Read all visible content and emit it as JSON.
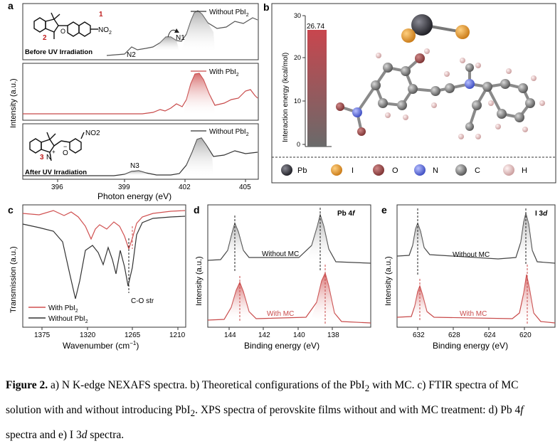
{
  "panels": {
    "a": {
      "letter": "a",
      "xlabel": "Photon energy (eV)",
      "ylabel": "Intensity (a.u.)",
      "xticks": [
        "396",
        "399",
        "402",
        "405"
      ],
      "sub1": {
        "legend": "Without PbI",
        "legend_sub": "2",
        "title": "Before UV Irradiation",
        "peaks": [
          "N1",
          "N2"
        ],
        "struct_labels": [
          "1",
          "2",
          "NO",
          "2",
          "O"
        ]
      },
      "sub2": {
        "legend": "With PbI",
        "legend_sub": "2"
      },
      "sub3": {
        "legend": "Without PbI",
        "legend_sub": "2",
        "title": "After UV Irradiation",
        "peaks": [
          "N3"
        ],
        "struct_labels": [
          "NO2",
          "3",
          "N",
          "+",
          "O",
          "−"
        ]
      }
    },
    "b": {
      "letter": "b",
      "ylabel": "Interaction energy (kcal/mol)",
      "yticks": [
        "0",
        "10",
        "20",
        "30"
      ],
      "value_label": "26.74",
      "legend": [
        {
          "label": "Pb",
          "color": "#3a3a44"
        },
        {
          "label": "I",
          "color": "#e79a2a"
        },
        {
          "label": "O",
          "color": "#9a4a4a"
        },
        {
          "label": "N",
          "color": "#5a6ad8"
        },
        {
          "label": "C",
          "color": "#6f6f6f"
        },
        {
          "label": "H",
          "color": "#e8c4c4"
        }
      ]
    },
    "c": {
      "letter": "c",
      "xlabel": "Wavenumber (cm",
      "xlabel_sup": "−1",
      "xlabel_end": ")",
      "ylabel": "Transmission (a.u.)",
      "xticks": [
        "1375",
        "1320",
        "1265",
        "1210"
      ],
      "annotation": "C-O str",
      "legend": [
        {
          "label": "With PbI",
          "sub": "2",
          "color": "#d05050"
        },
        {
          "label": "Without PbI",
          "sub": "2",
          "color": "#333333"
        }
      ]
    },
    "d": {
      "letter": "d",
      "title": "Pb 4",
      "title_it": "f",
      "xlabel": "Binding energy (eV)",
      "ylabel": "Intensity (a.u.)",
      "xticks": [
        "144",
        "142",
        "140",
        "138"
      ],
      "labels": [
        "Without MC",
        "With MC"
      ]
    },
    "e": {
      "letter": "e",
      "title": "I 3",
      "title_it": "d",
      "xlabel": "Binding energy (eV)",
      "ylabel": "Intensity (a.u.)",
      "xticks": [
        "632",
        "628",
        "624",
        "620"
      ],
      "labels": [
        "Without MC",
        "With MC"
      ]
    }
  },
  "caption": {
    "fig": "Figure 2.",
    "text": " a) N K-edge NEXAFS spectra. b) Theoretical configurations of the PbI",
    "sub1": "2",
    "text2": " with MC. c) FTIR spectra of MC solution with and without introducing PbI",
    "sub2": "2",
    "text3": ". XPS spectra of perovskite films without and with MC treatment: d) Pb 4",
    "it1": "f",
    "text4": " spectra and e) I 3",
    "it2": "d",
    "text5": " spectra."
  }
}
